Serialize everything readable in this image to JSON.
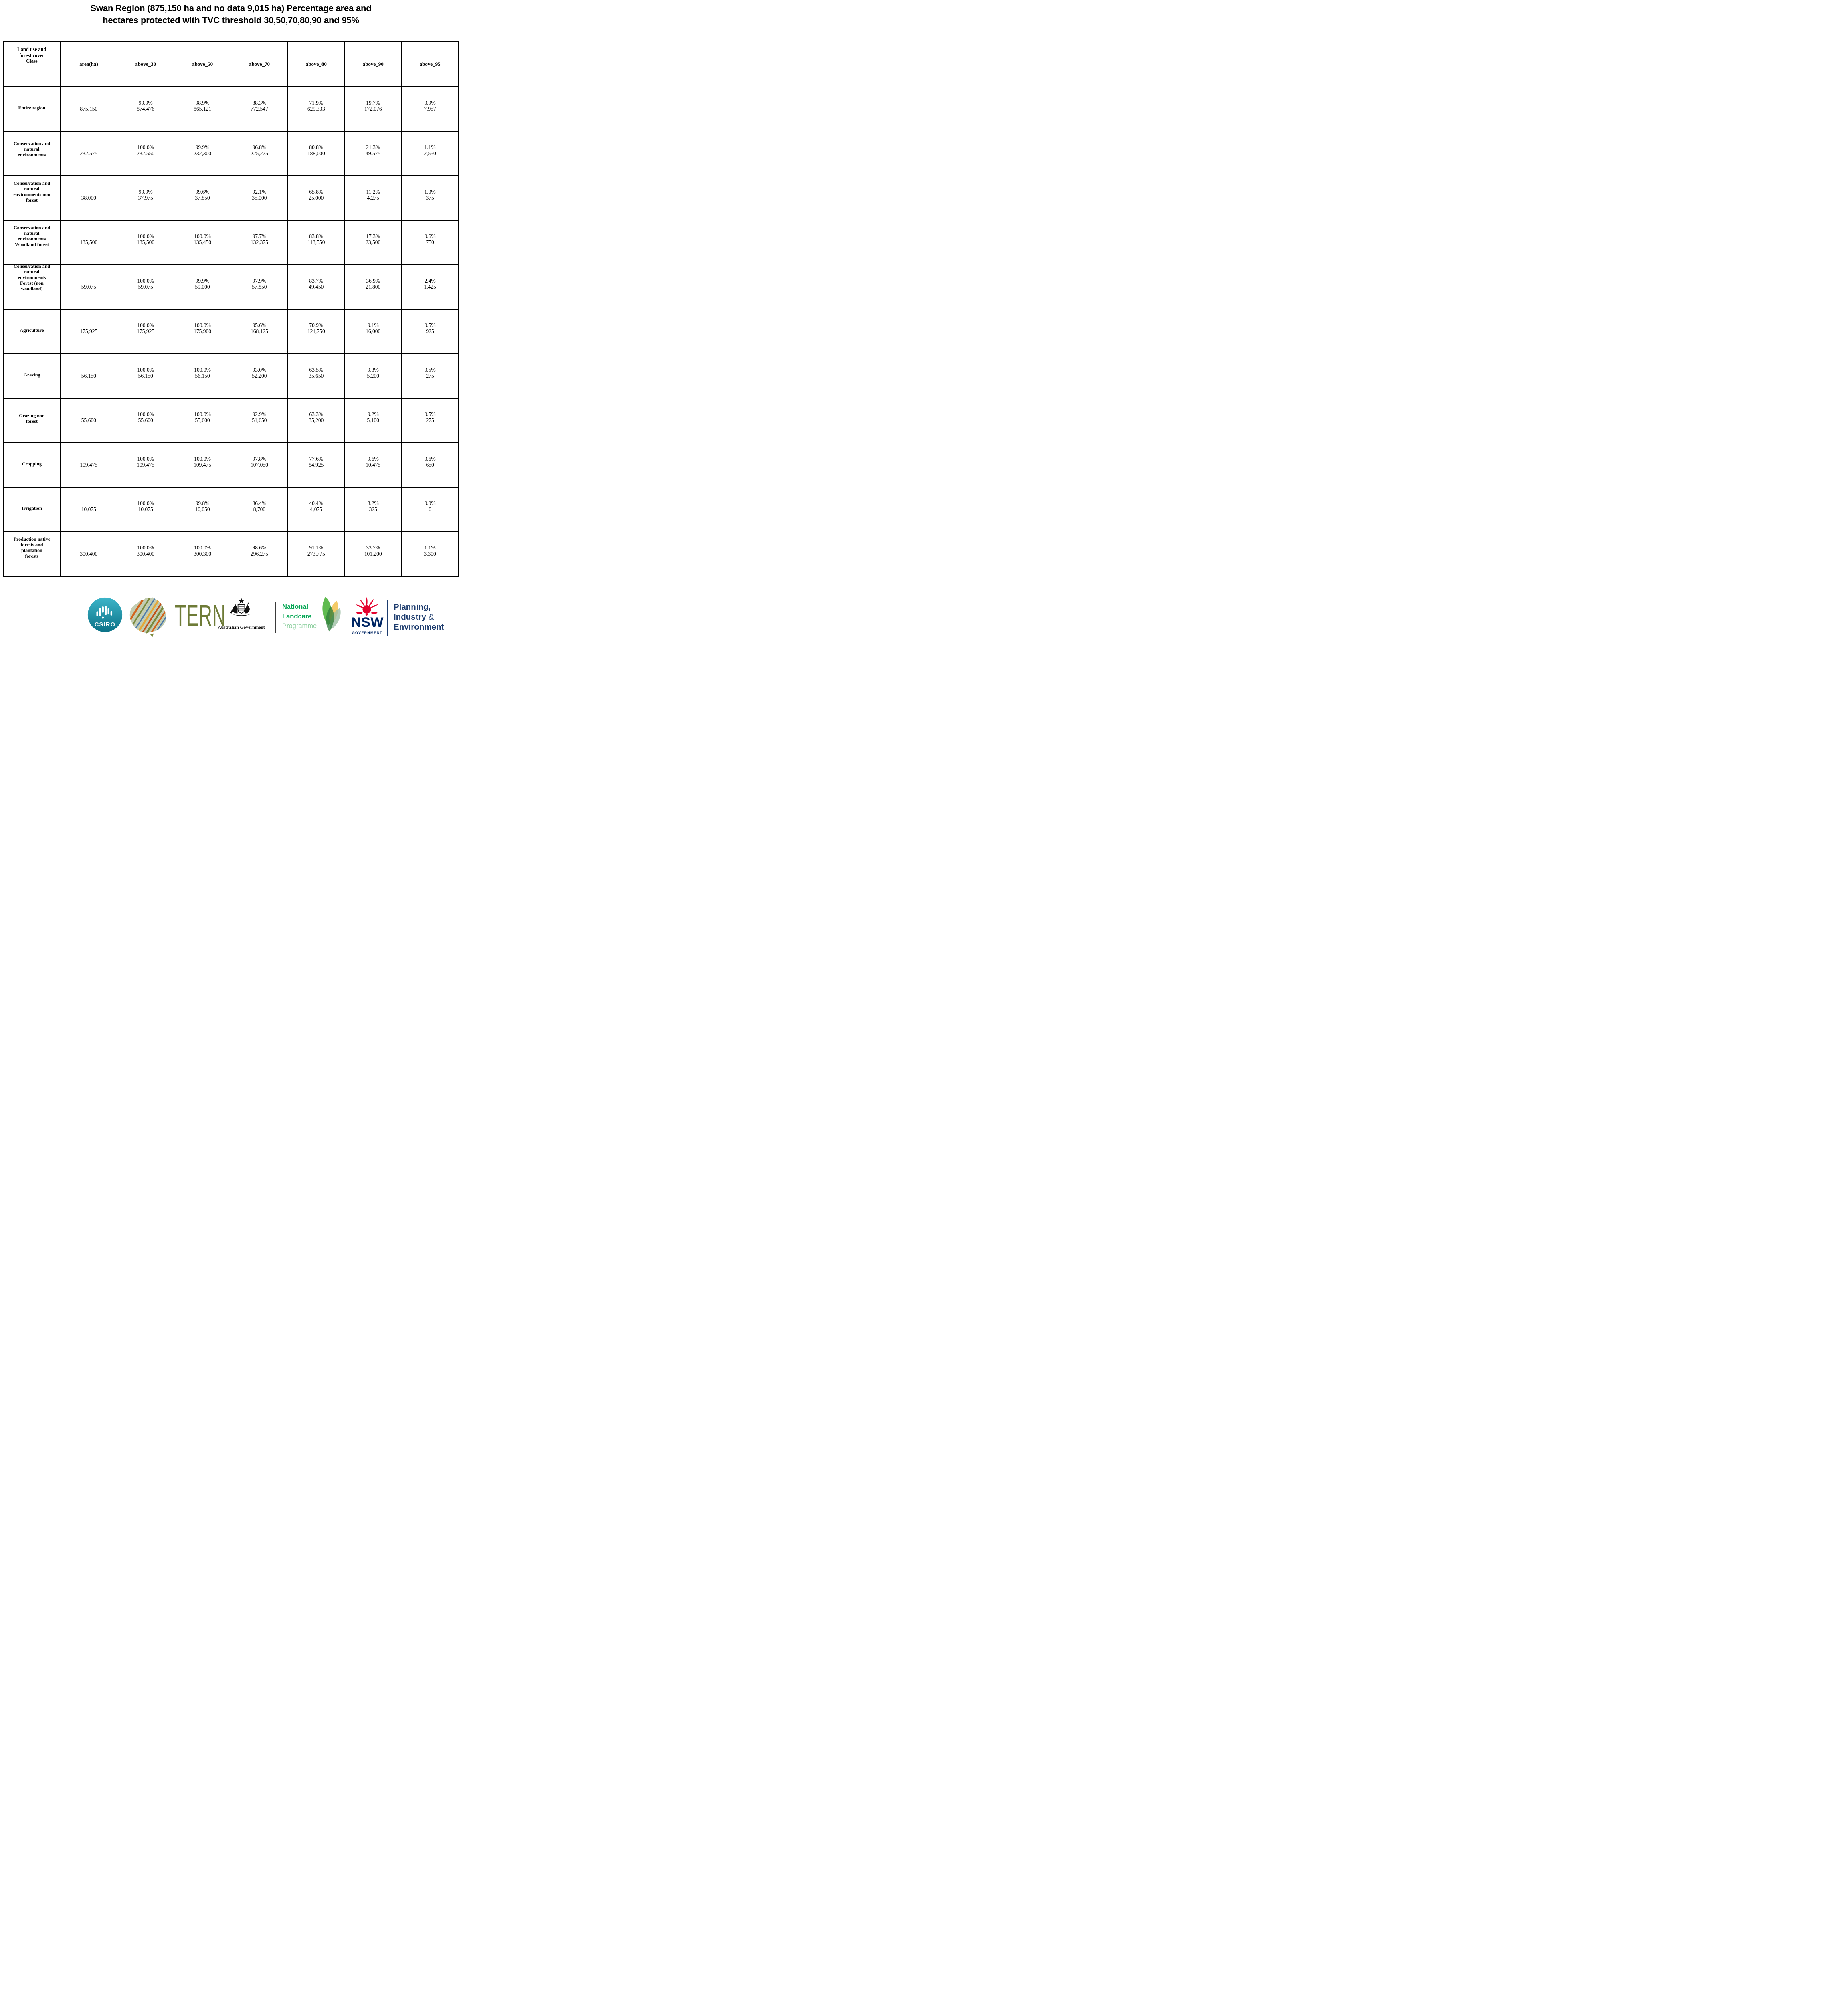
{
  "title": {
    "line1": "Swan Region (875,150 ha and no data 9,015 ha) Percentage area and",
    "line2": "hectares protected with TVC threshold 30,50,70,80,90 and 95%"
  },
  "table": {
    "columns": [
      "Land use and\nforest cover\nClass",
      "area(ha)",
      "above_30",
      "above_50",
      "above_70",
      "above_80",
      "above_90",
      "above_95"
    ],
    "rows": [
      {
        "label": "Entire region",
        "area": "875,150",
        "cells": [
          [
            "99.9%",
            "874,476"
          ],
          [
            "98.9%",
            "865,121"
          ],
          [
            "88.3%",
            "772,547"
          ],
          [
            "71.9%",
            "629,333"
          ],
          [
            "19.7%",
            "172,076"
          ],
          [
            "0.9%",
            "7,957"
          ]
        ]
      },
      {
        "label": "Conservation and\nnatural\nenvironments",
        "area": "232,575",
        "cells": [
          [
            "100.0%",
            "232,550"
          ],
          [
            "99.9%",
            "232,300"
          ],
          [
            "96.8%",
            "225,225"
          ],
          [
            "80.8%",
            "188,000"
          ],
          [
            "21.3%",
            "49,575"
          ],
          [
            "1.1%",
            "2,550"
          ]
        ]
      },
      {
        "label": "Conservation and\nnatural\nenvironments non\nforest",
        "area": "38,000",
        "cells": [
          [
            "99.9%",
            "37,975"
          ],
          [
            "99.6%",
            "37,850"
          ],
          [
            "92.1%",
            "35,000"
          ],
          [
            "65.8%",
            "25,000"
          ],
          [
            "11.2%",
            "4,275"
          ],
          [
            "1.0%",
            "375"
          ]
        ]
      },
      {
        "label": "Conservation and\nnatural\nenvironments\nWoodland forest",
        "area": "135,500",
        "cells": [
          [
            "100.0%",
            "135,500"
          ],
          [
            "100.0%",
            "135,450"
          ],
          [
            "97.7%",
            "132,375"
          ],
          [
            "83.8%",
            "113,550"
          ],
          [
            "17.3%",
            "23,500"
          ],
          [
            "0.6%",
            "750"
          ]
        ]
      },
      {
        "label": "Conservation and\nnatural\nenvironments\nForest (non\nwoodland)",
        "area": "59,075",
        "cells": [
          [
            "100.0%",
            "59,075"
          ],
          [
            "99.9%",
            "59,000"
          ],
          [
            "97.9%",
            "57,850"
          ],
          [
            "83.7%",
            "49,450"
          ],
          [
            "36.9%",
            "21,800"
          ],
          [
            "2.4%",
            "1,425"
          ]
        ]
      },
      {
        "label": "Agriculture",
        "area": "175,925",
        "cells": [
          [
            "100.0%",
            "175,925"
          ],
          [
            "100.0%",
            "175,900"
          ],
          [
            "95.6%",
            "168,125"
          ],
          [
            "70.9%",
            "124,750"
          ],
          [
            "9.1%",
            "16,000"
          ],
          [
            "0.5%",
            "925"
          ]
        ]
      },
      {
        "label": "Grazing",
        "area": "56,150",
        "cells": [
          [
            "100.0%",
            "56,150"
          ],
          [
            "100.0%",
            "56,150"
          ],
          [
            "93.0%",
            "52,200"
          ],
          [
            "63.5%",
            "35,650"
          ],
          [
            "9.3%",
            "5,200"
          ],
          [
            "0.5%",
            "275"
          ]
        ]
      },
      {
        "label": "Grazing non\nforest",
        "area": "55,600",
        "cells": [
          [
            "100.0%",
            "55,600"
          ],
          [
            "100.0%",
            "55,600"
          ],
          [
            "92.9%",
            "51,650"
          ],
          [
            "63.3%",
            "35,200"
          ],
          [
            "9.2%",
            "5,100"
          ],
          [
            "0.5%",
            "275"
          ]
        ]
      },
      {
        "label": "Cropping",
        "area": "109,475",
        "cells": [
          [
            "100.0%",
            "109,475"
          ],
          [
            "100.0%",
            "109,475"
          ],
          [
            "97.8%",
            "107,050"
          ],
          [
            "77.6%",
            "84,925"
          ],
          [
            "9.6%",
            "10,475"
          ],
          [
            "0.6%",
            "650"
          ]
        ]
      },
      {
        "label": "Irrigation",
        "area": "10,075",
        "cells": [
          [
            "100.0%",
            "10,075"
          ],
          [
            "99.8%",
            "10,050"
          ],
          [
            "86.4%",
            "8,700"
          ],
          [
            "40.4%",
            "4,075"
          ],
          [
            "3.2%",
            "325"
          ],
          [
            "0.0%",
            "0"
          ]
        ]
      },
      {
        "label": "Production native\nforests and\nplantation\nforests",
        "area": "300,400",
        "cells": [
          [
            "100.0%",
            "300,400"
          ],
          [
            "100.0%",
            "300,300"
          ],
          [
            "98.6%",
            "296,275"
          ],
          [
            "91.1%",
            "273,775"
          ],
          [
            "33.7%",
            "101,200"
          ],
          [
            "1.1%",
            "3,300"
          ]
        ]
      }
    ]
  },
  "footer": {
    "csiro_label": "CSIRO",
    "tern_label": "TERN",
    "aus_gov_label": "Australian Government",
    "landcare": {
      "line1": "National",
      "line2": "Landcare",
      "line3": "Programme"
    },
    "nsw": {
      "abbr": "NSW",
      "government": "GOVERNMENT"
    },
    "planning": {
      "line1": "Planning,",
      "line2": "Industry",
      "amp": "&",
      "line3": "Environment"
    }
  },
  "colors": {
    "csiro_teal_light": "#3db5c9",
    "csiro_teal_dark": "#0b7287",
    "tern_olive": "#6e7b37",
    "tern_map_base": "#c3cdb2",
    "landcare_green": "#00a551",
    "landcare_light_green": "#8ccf9e",
    "nsw_red": "#e4032e",
    "nsw_navy": "#002664",
    "planning_navy": "#1d3c6e"
  }
}
